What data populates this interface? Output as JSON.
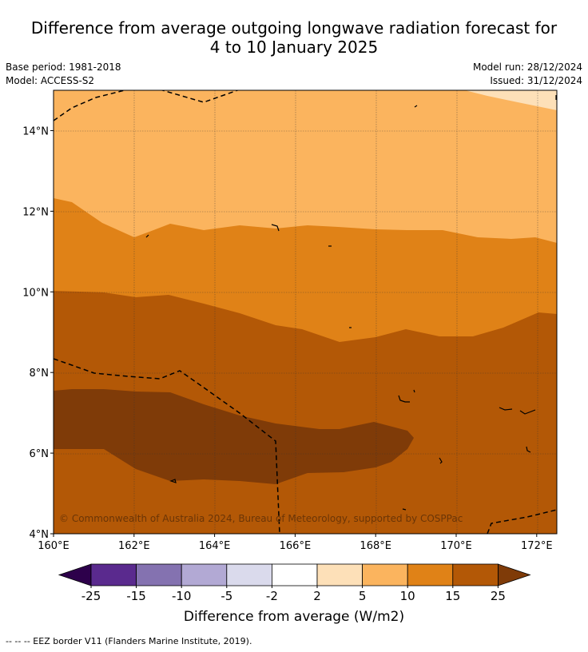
{
  "title_line1": "Difference from average outgoing longwave radiation forecast for",
  "title_line2": "4 to 10 January 2025",
  "base_period": "Base period: 1981-2018",
  "model": "Model: ACCESS-S2",
  "model_run": "Model run: 28/12/2024",
  "issued": "Issued: 31/12/2024",
  "copyright": "© Commonwealth of Australia 2024, Bureau of Meteorology, supported by COSPPac",
  "lon_ticks": [
    "160°E",
    "162°E",
    "164°E",
    "166°E",
    "168°E",
    "170°E",
    "172°E"
  ],
  "lat_ticks": [
    "4°N",
    "6°N",
    "8°N",
    "10°N",
    "12°N",
    "14°N"
  ],
  "colorbar": {
    "label": "Difference from average (W/m2)",
    "ticks": [
      "-25",
      "-15",
      "-10",
      "-5",
      "-2",
      "2",
      "5",
      "10",
      "15",
      "25"
    ],
    "colors": [
      "#5a2a8e",
      "#8472b0",
      "#b2a9d4",
      "#dadaec",
      "#ffffff",
      "#fde0b8",
      "#fbb45e",
      "#e08217",
      "#b35806"
    ],
    "under_color": "#2d004b",
    "over_color": "#7f3b08"
  },
  "legend_note": "--  --  -- EEZ border V11 (Flanders Marine Institute, 2019).",
  "map_colors": {
    "c2_5": "#fde0b8",
    "c5_10": "#fbb45e",
    "c10_15": "#e08217",
    "c15_25": "#b35806",
    "c25plus": "#7f3b08"
  }
}
